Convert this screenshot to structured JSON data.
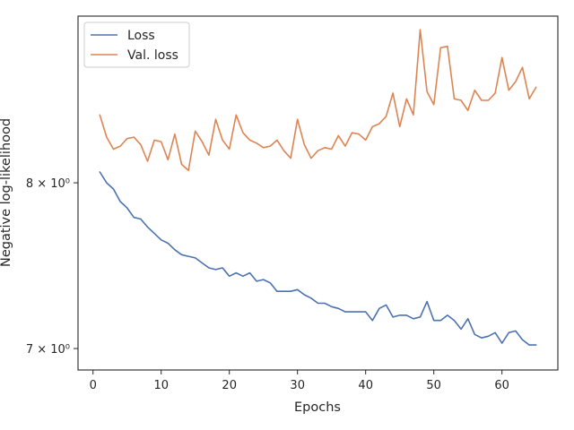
{
  "chart_data": {
    "type": "line",
    "title": "",
    "xlabel": "Epochs",
    "ylabel": "Negative log-likelihood",
    "yscale": "log",
    "xlim": [
      -2.2,
      68.2
    ],
    "ylim": [
      6.88,
      9.15
    ],
    "xticks": [
      0,
      10,
      20,
      30,
      40,
      50,
      60
    ],
    "xtick_labels": [
      "0",
      "10",
      "20",
      "30",
      "40",
      "50",
      "60"
    ],
    "yticks": [
      7,
      8
    ],
    "ytick_labels": [
      "7 × 10⁰",
      "8 × 10⁰"
    ],
    "grid": false,
    "legend_position": "top-left",
    "x": [
      1,
      2,
      3,
      4,
      5,
      6,
      7,
      8,
      9,
      10,
      11,
      12,
      13,
      14,
      15,
      16,
      17,
      18,
      19,
      20,
      21,
      22,
      23,
      24,
      25,
      26,
      27,
      28,
      29,
      30,
      31,
      32,
      33,
      34,
      35,
      36,
      37,
      38,
      39,
      40,
      41,
      42,
      43,
      44,
      45,
      46,
      47,
      48,
      49,
      50,
      51,
      52,
      53,
      54,
      55,
      56,
      57,
      58,
      59,
      60,
      61,
      62,
      63,
      64,
      65
    ],
    "series": [
      {
        "name": "Loss",
        "color": "#4c72b0",
        "values": [
          8.07,
          8.0,
          7.96,
          7.88,
          7.84,
          7.78,
          7.77,
          7.72,
          7.68,
          7.64,
          7.62,
          7.58,
          7.55,
          7.54,
          7.53,
          7.5,
          7.47,
          7.46,
          7.47,
          7.42,
          7.44,
          7.42,
          7.44,
          7.39,
          7.4,
          7.38,
          7.33,
          7.33,
          7.33,
          7.34,
          7.31,
          7.29,
          7.26,
          7.26,
          7.24,
          7.23,
          7.21,
          7.21,
          7.21,
          7.21,
          7.16,
          7.23,
          7.25,
          7.18,
          7.19,
          7.19,
          7.17,
          7.18,
          7.27,
          7.16,
          7.16,
          7.19,
          7.16,
          7.11,
          7.17,
          7.08,
          7.06,
          7.07,
          7.09,
          7.03,
          7.09,
          7.1,
          7.05,
          7.02,
          7.02
        ]
      },
      {
        "name": "Val. loss",
        "color": "#dd8452",
        "values": [
          8.45,
          8.3,
          8.22,
          8.24,
          8.29,
          8.3,
          8.25,
          8.14,
          8.28,
          8.27,
          8.15,
          8.32,
          8.12,
          8.08,
          8.34,
          8.27,
          8.18,
          8.42,
          8.28,
          8.22,
          8.45,
          8.33,
          8.28,
          8.26,
          8.23,
          8.24,
          8.28,
          8.21,
          8.16,
          8.42,
          8.25,
          8.16,
          8.21,
          8.23,
          8.22,
          8.31,
          8.24,
          8.33,
          8.32,
          8.28,
          8.37,
          8.39,
          8.44,
          8.6,
          8.37,
          8.56,
          8.45,
          9.05,
          8.61,
          8.52,
          8.92,
          8.93,
          8.56,
          8.55,
          8.48,
          8.62,
          8.55,
          8.55,
          8.6,
          8.85,
          8.62,
          8.68,
          8.78,
          8.56,
          8.64
        ]
      }
    ]
  }
}
